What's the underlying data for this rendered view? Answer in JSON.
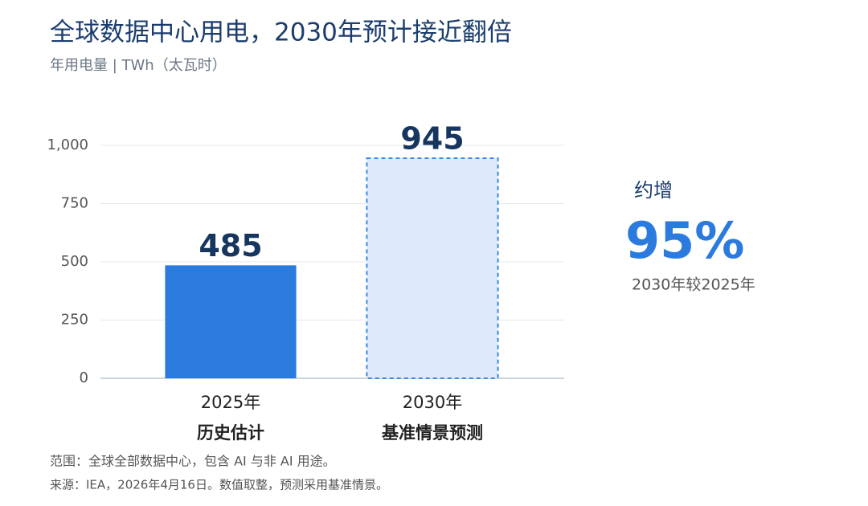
{
  "chart_data": {
    "type": "bar",
    "title": "全球数据中心用电，2030年预计接近翻倍",
    "subtitle": "年用电量 | TWh（太瓦时）",
    "categories": [
      "2025年",
      "2030年"
    ],
    "category_notes": [
      "历史估计",
      "基准情景预测"
    ],
    "values": [
      485,
      945
    ],
    "colors": [
      "#2b7bde",
      "#dceafb"
    ],
    "bar_styles": [
      "solid",
      "dashed"
    ],
    "dash_color": "#3b86e0",
    "ylim": [
      0,
      1000
    ],
    "yticks": [
      0,
      250,
      500,
      750,
      {
        "value": 1000,
        "label": "1,000"
      }
    ],
    "grid": true,
    "callout": {
      "label": "约增",
      "value": "95%",
      "note": "2030年较2025年"
    },
    "footnotes": [
      "范围：全球全部数据中心，包含 AI 与非 AI 用途。",
      "来源：IEA，2026年4月16日。数值取整，预测采用基准情景。"
    ]
  }
}
